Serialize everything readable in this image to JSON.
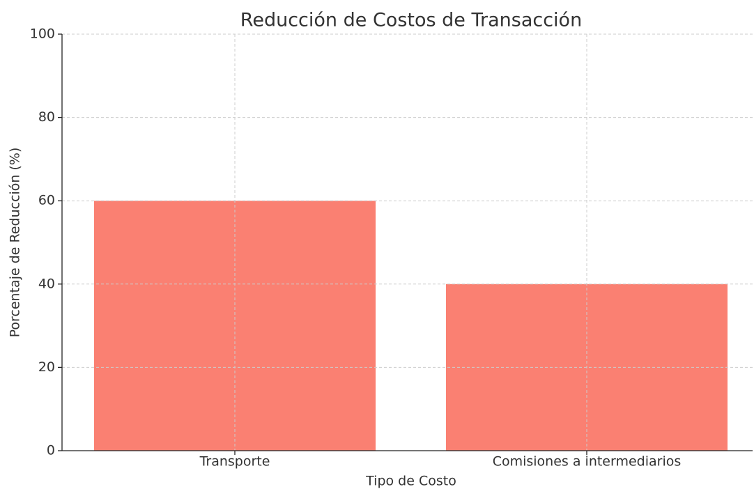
{
  "chart_data": {
    "type": "bar",
    "title": "Reducción de Costos de Transacción",
    "x_label": "Tipo de Costo",
    "y_label": "Porcentaje de Reducción (%)",
    "categories": [
      "Transporte",
      "Comisiones a intermediarios"
    ],
    "values": [
      60,
      40
    ],
    "color": "#fa8072",
    "ylim": [
      0,
      100
    ],
    "yticks": [
      0,
      20,
      40,
      60,
      80,
      100
    ],
    "grid": true
  }
}
